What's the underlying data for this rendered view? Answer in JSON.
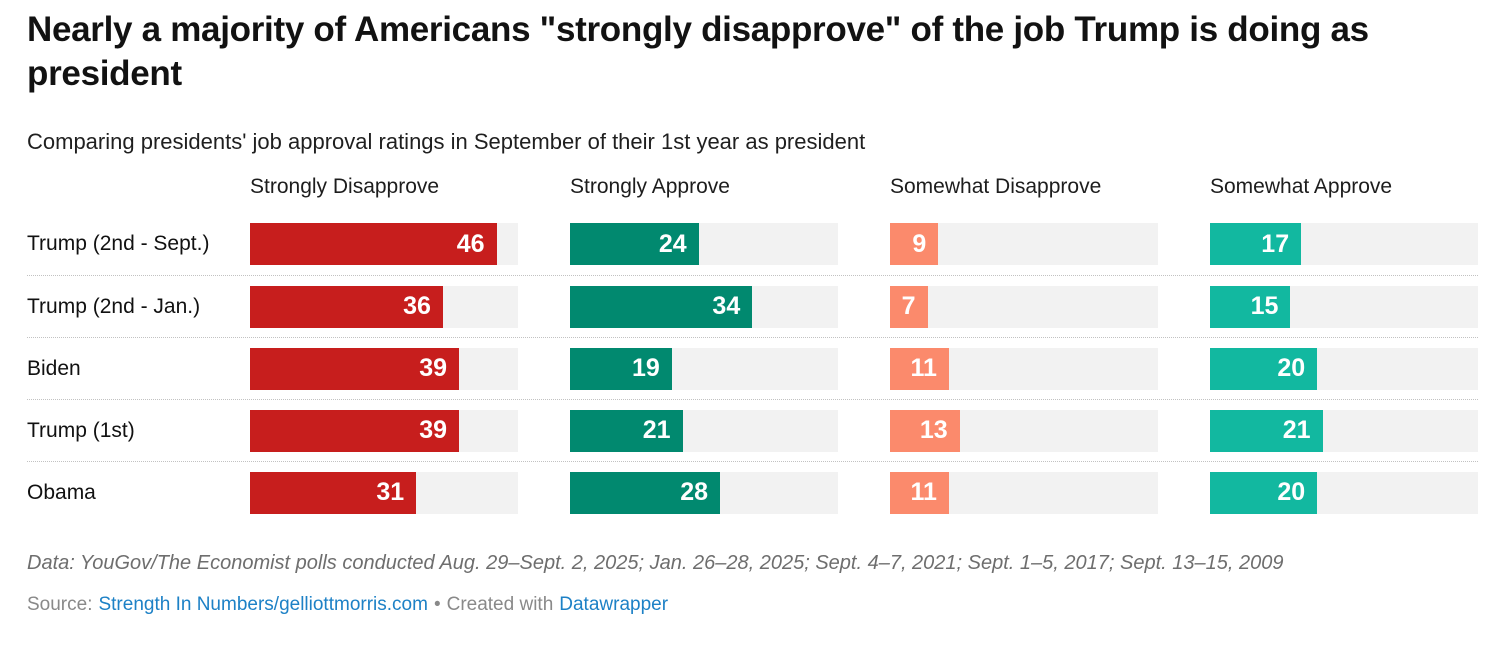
{
  "header": {
    "title": "Nearly a majority of Americans \"strongly disapprove\" of the job Trump is doing as president",
    "subtitle": "Comparing presidents' job approval ratings in September of their 1st year as president"
  },
  "chart_data": {
    "type": "bar",
    "orientation": "horizontal",
    "layout": "small-multiples, one column per response option, value labels inside bars, gray full-scale track behind each bar, dotted separators between rows",
    "categories": [
      "Trump (2nd - Sept.)",
      "Trump (2nd - Jan.)",
      "Biden",
      "Trump (1st)",
      "Obama"
    ],
    "series": [
      {
        "name": "Strongly Disapprove",
        "color": "#c71e1d",
        "values": [
          46,
          36,
          39,
          39,
          31
        ]
      },
      {
        "name": "Strongly Approve",
        "color": "#01896f",
        "values": [
          24,
          34,
          19,
          21,
          28
        ]
      },
      {
        "name": "Somewhat Disapprove",
        "color": "#fb8a6c",
        "values": [
          9,
          7,
          11,
          13,
          11
        ]
      },
      {
        "name": "Somewhat Approve",
        "color": "#12b8a0",
        "values": [
          17,
          15,
          20,
          21,
          20
        ]
      }
    ],
    "xlim": [
      0,
      50
    ],
    "grid": false,
    "legend": "column headers above each small multiple"
  },
  "colors": {
    "track_background": "#f2f2f2",
    "row_divider": "#c2c2c2",
    "link_blue": "#1d81c6",
    "note_gray": "#6e6e6e",
    "source_gray": "#898989"
  },
  "footer": {
    "note": "Data: YouGov/The Economist polls conducted Aug. 29–Sept. 2, 2025; Jan. 26–28, 2025; Sept. 4–7, 2021; Sept. 1–5, 2017; Sept. 13–15, 2009",
    "source_label": "Source:",
    "source_link": "Strength In Numbers/gelliottmorris.com",
    "separator": "•",
    "created_with": "Created with",
    "created_link": "Datawrapper"
  }
}
